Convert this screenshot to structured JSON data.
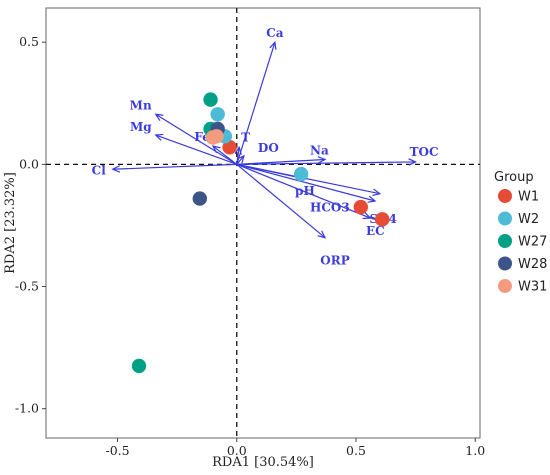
{
  "chart_data": {
    "type": "scatter",
    "title": "",
    "xlabel": "RDA1 [30.54%]",
    "ylabel": "RDA2 [23.32%]",
    "xlim": [
      -0.8,
      1.02
    ],
    "ylim": [
      -1.12,
      0.64
    ],
    "x_ticks": [
      -0.5,
      0.0,
      0.5,
      1.0
    ],
    "x_tick_labels": [
      "-0.5",
      "0.0",
      "0.5",
      "1.0"
    ],
    "y_ticks": [
      -1.0,
      -0.5,
      0.0,
      0.5
    ],
    "y_tick_labels": [
      "-1.0",
      "-0.5",
      "0.0",
      "0.5"
    ],
    "grid": false,
    "reference_lines": {
      "x": 0,
      "y": 0,
      "style": "dashed"
    },
    "legend": {
      "title": "Group",
      "position": "right",
      "entries": [
        {
          "name": "W1",
          "color": "#e64b35"
        },
        {
          "name": "W2",
          "color": "#4dbbd5"
        },
        {
          "name": "W27",
          "color": "#00a087"
        },
        {
          "name": "W28",
          "color": "#3c5488"
        },
        {
          "name": "W31",
          "color": "#f39b7f"
        }
      ]
    },
    "series": [
      {
        "name": "W1",
        "color": "#e64b35",
        "points": [
          [
            -0.03,
            0.07
          ],
          [
            0.52,
            -0.175
          ],
          [
            0.61,
            -0.225
          ]
        ]
      },
      {
        "name": "W2",
        "color": "#4dbbd5",
        "points": [
          [
            -0.08,
            0.205
          ],
          [
            -0.05,
            0.115
          ],
          [
            0.27,
            -0.04
          ]
        ]
      },
      {
        "name": "W27",
        "color": "#00a087",
        "points": [
          [
            -0.11,
            0.265
          ],
          [
            -0.11,
            0.145
          ],
          [
            -0.41,
            -0.825
          ]
        ]
      },
      {
        "name": "W28",
        "color": "#3c5488",
        "points": [
          [
            -0.08,
            0.145
          ],
          [
            -0.155,
            -0.14
          ]
        ]
      },
      {
        "name": "W31",
        "color": "#f39b7f",
        "points": [
          [
            -0.1,
            0.11
          ],
          [
            -0.085,
            0.115
          ]
        ]
      }
    ],
    "vectors": {
      "color": "#3b3bdc",
      "items": [
        {
          "name": "Ca",
          "x": 0.16,
          "y": 0.5
        },
        {
          "name": "Mn",
          "x": -0.34,
          "y": 0.205
        },
        {
          "name": "Mg",
          "x": -0.34,
          "y": 0.12
        },
        {
          "name": "Fe",
          "x": -0.1,
          "y": 0.075
        },
        {
          "name": "Cl",
          "x": -0.52,
          "y": -0.02
        },
        {
          "name": "T",
          "x": 0.01,
          "y": 0.07
        },
        {
          "name": "DO",
          "x": 0.03,
          "y": 0.035
        },
        {
          "name": "Na",
          "x": 0.37,
          "y": 0.02
        },
        {
          "name": "TOC",
          "x": 0.75,
          "y": 0.01
        },
        {
          "name": "pH",
          "x": 0.29,
          "y": -0.06
        },
        {
          "name": "HCO3",
          "x": 0.6,
          "y": -0.12
        },
        {
          "name": "SO4",
          "x": 0.58,
          "y": -0.15
        },
        {
          "name": "EC",
          "x": 0.56,
          "y": -0.22
        },
        {
          "name": "ORP",
          "x": 0.37,
          "y": -0.3
        }
      ]
    }
  }
}
